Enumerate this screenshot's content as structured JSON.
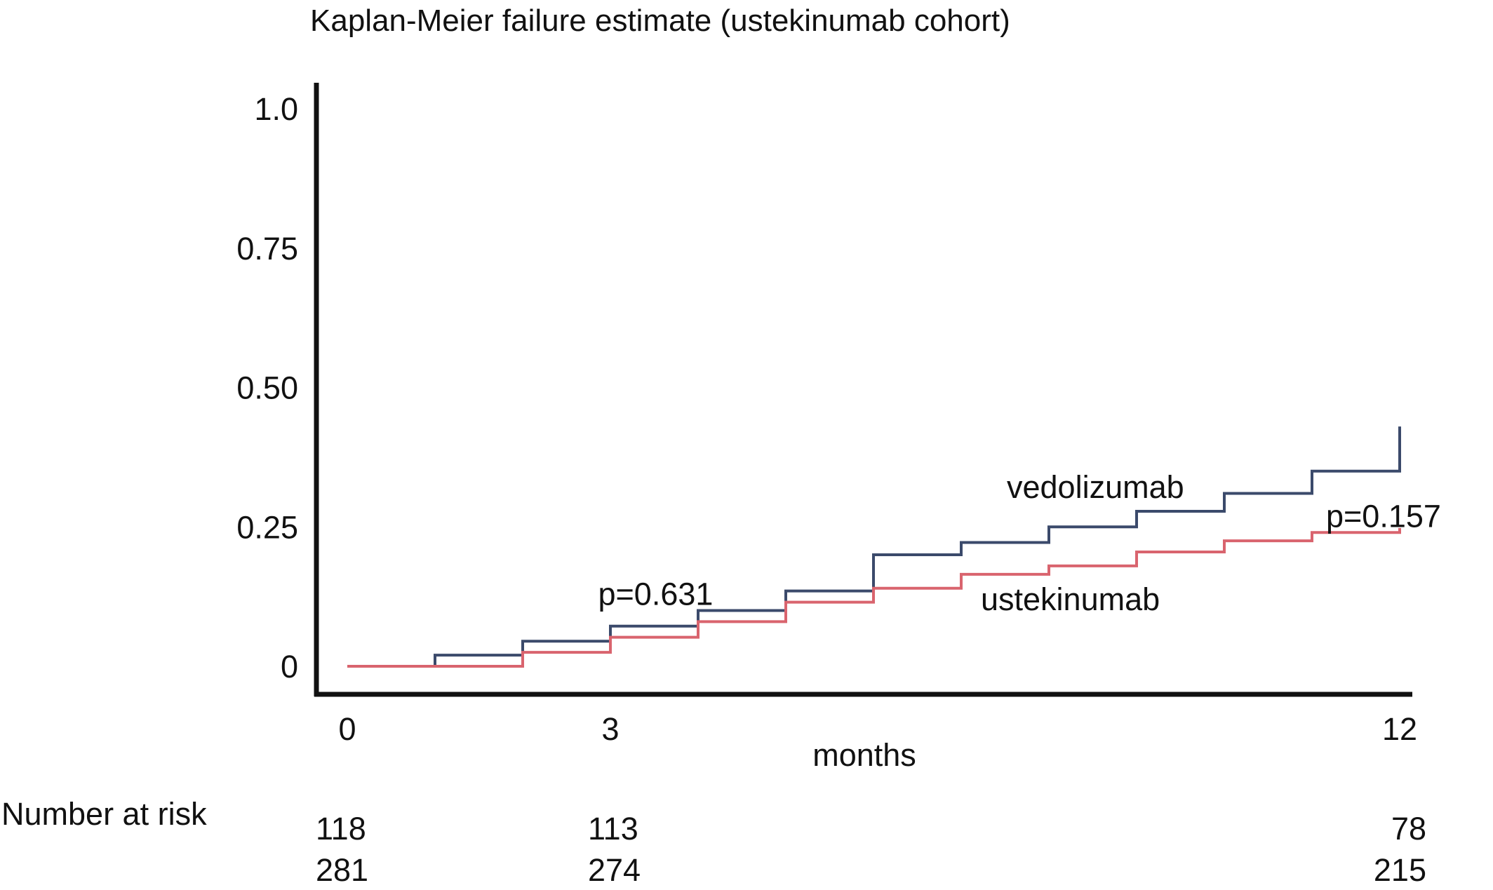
{
  "chart_data": {
    "type": "line",
    "step": true,
    "title": "Kaplan-Meier failure estimate (ustekinumab cohort)",
    "xlabel": "months",
    "ylabel": "",
    "xlim": [
      0,
      12
    ],
    "ylim": [
      0,
      1.0
    ],
    "xticks": [
      {
        "value": 0,
        "label": "0"
      },
      {
        "value": 3,
        "label": "3"
      },
      {
        "value": 12,
        "label": "12"
      }
    ],
    "yticks": [
      {
        "value": 0,
        "label": "0"
      },
      {
        "value": 0.25,
        "label": "0.25"
      },
      {
        "value": 0.5,
        "label": "0.50"
      },
      {
        "value": 0.75,
        "label": "0.75"
      },
      {
        "value": 1.0,
        "label": "1.0"
      }
    ],
    "grid": false,
    "legend": "none",
    "series": [
      {
        "name": "vedolizumab",
        "color": "#3b4a6b",
        "points": [
          [
            0,
            0
          ],
          [
            1,
            0.02
          ],
          [
            2,
            0.045
          ],
          [
            3,
            0.072
          ],
          [
            4,
            0.1
          ],
          [
            5,
            0.135
          ],
          [
            6,
            0.2
          ],
          [
            7,
            0.222
          ],
          [
            8,
            0.25
          ],
          [
            9,
            0.278
          ],
          [
            10,
            0.31
          ],
          [
            11,
            0.35
          ],
          [
            12,
            0.43
          ]
        ]
      },
      {
        "name": "ustekinumab",
        "color": "#d9646e",
        "points": [
          [
            0,
            0
          ],
          [
            2,
            0.025
          ],
          [
            3,
            0.052
          ],
          [
            4,
            0.08
          ],
          [
            5,
            0.115
          ],
          [
            6,
            0.14
          ],
          [
            7,
            0.165
          ],
          [
            8,
            0.18
          ],
          [
            9,
            0.205
          ],
          [
            10,
            0.225
          ],
          [
            11,
            0.24
          ],
          [
            12,
            0.248
          ]
        ]
      }
    ],
    "annotations": [
      {
        "text": "p=0.631",
        "x": 3.3,
        "y": 0.13
      },
      {
        "text": "p=0.157",
        "x": 11.6,
        "y": 0.27
      }
    ],
    "number_at_risk": {
      "label": "Number at risk",
      "rows": [
        [
          {
            "x": 0,
            "value": "118"
          },
          {
            "x": 3,
            "value": "113"
          },
          {
            "x": 12,
            "value": "78"
          }
        ],
        [
          {
            "x": 0,
            "value": "281"
          },
          {
            "x": 3,
            "value": "274"
          },
          {
            "x": 12,
            "value": "215"
          }
        ]
      ]
    }
  }
}
